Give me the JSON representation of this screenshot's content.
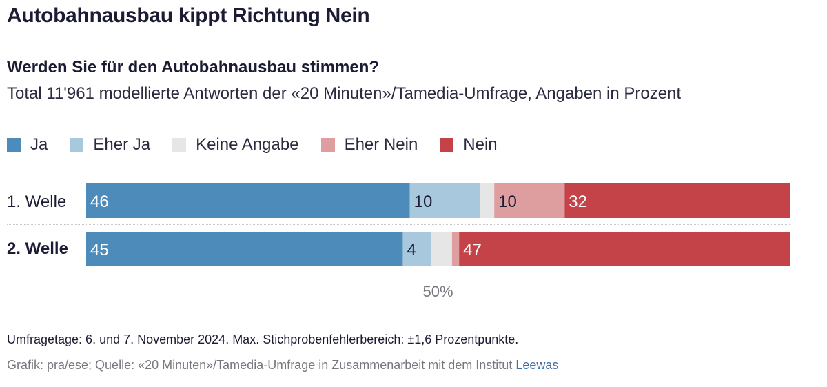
{
  "title": "Autobahnausbau kippt Richtung Nein",
  "subtitle": "Werden Sie für den Autobahnausbau stimmen?",
  "description": "Total 11'961 modellierte Antworten der «20 Minuten»/Tamedia-Umfrage, Angaben in Prozent",
  "legend": [
    {
      "label": "Ja",
      "color": "#4d8bba"
    },
    {
      "label": "Eher Ja",
      "color": "#a8c8de"
    },
    {
      "label": "Keine Angabe",
      "color": "#e6e6e6"
    },
    {
      "label": "Eher Nein",
      "color": "#de9ea0"
    },
    {
      "label": "Nein",
      "color": "#c44348"
    }
  ],
  "chart_data": {
    "type": "bar",
    "orientation": "horizontal",
    "stacked": true,
    "categories": [
      "1. Welle",
      "2. Welle"
    ],
    "series": [
      {
        "name": "Ja",
        "values": [
          46,
          45
        ]
      },
      {
        "name": "Eher Ja",
        "values": [
          10,
          4
        ]
      },
      {
        "name": "Keine Angabe",
        "values": [
          2,
          3
        ]
      },
      {
        "name": "Eher Nein",
        "values": [
          10,
          1
        ]
      },
      {
        "name": "Nein",
        "values": [
          32,
          47
        ]
      }
    ],
    "data_labels": [
      [
        "46",
        "10",
        "",
        "10",
        "32"
      ],
      [
        "45",
        "4",
        "",
        "",
        "47"
      ]
    ],
    "xlim": [
      0,
      100
    ],
    "midline_label": "50%"
  },
  "note": "Umfragetage: 6. und 7. November 2024. Max. Stichprobenfehlerbereich: ±1,6 Prozentpunkte.",
  "source": {
    "text": "Grafik: pra/ese; Quelle: «20 Minuten»/Tamedia-Umfrage in Zusammenarbeit mit dem Institut ",
    "link": "Leewas"
  }
}
